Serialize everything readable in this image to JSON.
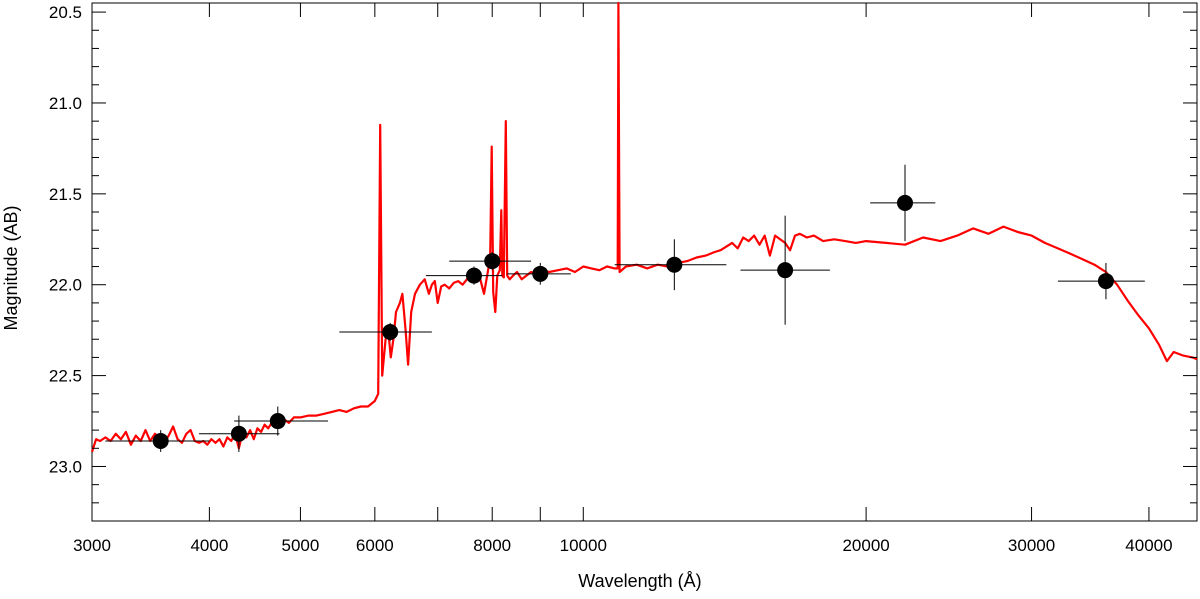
{
  "chart_data": {
    "type": "scatter",
    "title": "",
    "xlabel": "Wavelength (Å)",
    "ylabel": "Magnitude (AB)",
    "x_scale": "log",
    "y_inverted": true,
    "xlim": [
      3000,
      45000
    ],
    "ylim": [
      23.3,
      20.45
    ],
    "x_ticks_major": [
      3000,
      4000,
      5000,
      6000,
      8000,
      10000,
      20000,
      30000,
      40000
    ],
    "x_ticks_minor": [
      7000,
      9000,
      40000
    ],
    "y_ticks_major": [
      20.5,
      21.0,
      21.5,
      22.0,
      22.5,
      23.0
    ],
    "y_tick_labels": [
      "20.5",
      "21.0",
      "21.5",
      "22.0",
      "22.5",
      "23.0"
    ],
    "x_tick_labels": [
      "3000",
      "4000",
      "5000",
      "6000",
      "8000",
      "10000",
      "20000",
      "30000",
      "40000"
    ],
    "grid": false,
    "colors": {
      "model": "#ff0000",
      "points": "#000000",
      "errorbars": "#000000"
    },
    "photometry": [
      {
        "x": 3550,
        "y": 22.86,
        "xerr": [
          3100,
          4000
        ],
        "yerr": 0.06
      },
      {
        "x": 4300,
        "y": 22.82,
        "xerr": [
          3900,
          4750
        ],
        "yerr": 0.1
      },
      {
        "x": 4730,
        "y": 22.75,
        "xerr": [
          4250,
          5350
        ],
        "yerr": 0.08
      },
      {
        "x": 6230,
        "y": 22.26,
        "xerr": [
          5500,
          6900
        ],
        "yerr": 0.05
      },
      {
        "x": 7650,
        "y": 21.95,
        "xerr": [
          6800,
          8200
        ],
        "yerr": 0.05
      },
      {
        "x": 8000,
        "y": 21.87,
        "xerr": [
          7200,
          8800
        ],
        "yerr": 0.05
      },
      {
        "x": 9000,
        "y": 21.94,
        "xerr": [
          8300,
          9700
        ],
        "yerr": 0.06
      },
      {
        "x": 12500,
        "y": 21.89,
        "xerr": [
          10800,
          14200
        ],
        "yerr": 0.14
      },
      {
        "x": 16400,
        "y": 21.92,
        "xerr": [
          14700,
          18300
        ],
        "yerr": 0.3
      },
      {
        "x": 22000,
        "y": 21.55,
        "xerr": [
          20200,
          23700
        ],
        "yerr": 0.21
      },
      {
        "x": 36000,
        "y": 21.98,
        "xerr": [
          32000,
          39600
        ],
        "yerr": 0.1
      }
    ],
    "model_spectrum": [
      [
        3000,
        22.92
      ],
      [
        3030,
        22.85
      ],
      [
        3060,
        22.86
      ],
      [
        3100,
        22.84
      ],
      [
        3140,
        22.86
      ],
      [
        3180,
        22.82
      ],
      [
        3220,
        22.85
      ],
      [
        3260,
        22.81
      ],
      [
        3300,
        22.88
      ],
      [
        3340,
        22.83
      ],
      [
        3380,
        22.86
      ],
      [
        3420,
        22.8
      ],
      [
        3460,
        22.86
      ],
      [
        3500,
        22.82
      ],
      [
        3540,
        22.84
      ],
      [
        3580,
        22.87
      ],
      [
        3620,
        22.83
      ],
      [
        3660,
        22.78
      ],
      [
        3700,
        22.85
      ],
      [
        3740,
        22.87
      ],
      [
        3780,
        22.82
      ],
      [
        3820,
        22.8
      ],
      [
        3860,
        22.86
      ],
      [
        3900,
        22.87
      ],
      [
        3940,
        22.86
      ],
      [
        3980,
        22.88
      ],
      [
        4020,
        22.85
      ],
      [
        4060,
        22.87
      ],
      [
        4100,
        22.85
      ],
      [
        4140,
        22.89
      ],
      [
        4180,
        22.84
      ],
      [
        4220,
        22.86
      ],
      [
        4260,
        22.82
      ],
      [
        4300,
        22.9
      ],
      [
        4340,
        22.81
      ],
      [
        4380,
        22.84
      ],
      [
        4420,
        22.8
      ],
      [
        4460,
        22.85
      ],
      [
        4500,
        22.79
      ],
      [
        4540,
        22.81
      ],
      [
        4580,
        22.77
      ],
      [
        4620,
        22.79
      ],
      [
        4660,
        22.76
      ],
      [
        4700,
        22.78
      ],
      [
        4750,
        22.75
      ],
      [
        4800,
        22.74
      ],
      [
        4860,
        22.76
      ],
      [
        4920,
        22.73
      ],
      [
        5000,
        22.73
      ],
      [
        5100,
        22.72
      ],
      [
        5200,
        22.72
      ],
      [
        5300,
        22.71
      ],
      [
        5400,
        22.7
      ],
      [
        5500,
        22.69
      ],
      [
        5600,
        22.7
      ],
      [
        5700,
        22.68
      ],
      [
        5800,
        22.67
      ],
      [
        5900,
        22.67
      ],
      [
        6000,
        22.64
      ],
      [
        6050,
        22.6
      ],
      [
        6080,
        21.12
      ],
      [
        6110,
        22.5
      ],
      [
        6160,
        22.3
      ],
      [
        6200,
        22.25
      ],
      [
        6240,
        22.4
      ],
      [
        6280,
        22.3
      ],
      [
        6320,
        22.15
      ],
      [
        6380,
        22.1
      ],
      [
        6420,
        22.05
      ],
      [
        6470,
        22.25
      ],
      [
        6510,
        22.44
      ],
      [
        6560,
        22.15
      ],
      [
        6620,
        22.05
      ],
      [
        6700,
        22.0
      ],
      [
        6780,
        21.97
      ],
      [
        6850,
        22.05
      ],
      [
        6900,
        22.0
      ],
      [
        6950,
        21.98
      ],
      [
        7000,
        22.1
      ],
      [
        7060,
        22.01
      ],
      [
        7120,
        22.0
      ],
      [
        7200,
        22.02
      ],
      [
        7280,
        21.99
      ],
      [
        7360,
        21.98
      ],
      [
        7440,
        22.0
      ],
      [
        7520,
        21.97
      ],
      [
        7600,
        21.96
      ],
      [
        7680,
        21.98
      ],
      [
        7760,
        21.96
      ],
      [
        7840,
        22.05
      ],
      [
        7920,
        21.92
      ],
      [
        7960,
        21.85
      ],
      [
        7990,
        21.24
      ],
      [
        8020,
        22.04
      ],
      [
        8060,
        22.15
      ],
      [
        8100,
        21.95
      ],
      [
        8150,
        21.92
      ],
      [
        8180,
        21.59
      ],
      [
        8200,
        21.95
      ],
      [
        8230,
        21.96
      ],
      [
        8270,
        21.1
      ],
      [
        8300,
        21.95
      ],
      [
        8350,
        21.97
      ],
      [
        8420,
        21.95
      ],
      [
        8500,
        21.93
      ],
      [
        8600,
        21.97
      ],
      [
        8700,
        21.95
      ],
      [
        8800,
        21.93
      ],
      [
        8900,
        21.94
      ],
      [
        9000,
        21.92
      ],
      [
        9200,
        21.93
      ],
      [
        9400,
        21.92
      ],
      [
        9600,
        21.91
      ],
      [
        9800,
        21.93
      ],
      [
        10000,
        21.9
      ],
      [
        10200,
        21.91
      ],
      [
        10400,
        21.92
      ],
      [
        10600,
        21.9
      ],
      [
        10800,
        21.91
      ],
      [
        10880,
        21.91
      ],
      [
        10900,
        20.45
      ],
      [
        10930,
        21.93
      ],
      [
        11100,
        21.9
      ],
      [
        11400,
        21.89
      ],
      [
        11700,
        21.91
      ],
      [
        12000,
        21.89
      ],
      [
        12300,
        21.9
      ],
      [
        12600,
        21.88
      ],
      [
        12900,
        21.87
      ],
      [
        13200,
        21.85
      ],
      [
        13500,
        21.84
      ],
      [
        13800,
        21.82
      ],
      [
        14000,
        21.81
      ],
      [
        14200,
        21.79
      ],
      [
        14400,
        21.77
      ],
      [
        14600,
        21.8
      ],
      [
        14800,
        21.74
      ],
      [
        15000,
        21.76
      ],
      [
        15200,
        21.73
      ],
      [
        15400,
        21.78
      ],
      [
        15600,
        21.73
      ],
      [
        15800,
        21.84
      ],
      [
        16000,
        21.73
      ],
      [
        16200,
        21.75
      ],
      [
        16400,
        21.77
      ],
      [
        16600,
        21.81
      ],
      [
        16800,
        21.73
      ],
      [
        17000,
        21.72
      ],
      [
        17300,
        21.74
      ],
      [
        17600,
        21.73
      ],
      [
        18000,
        21.76
      ],
      [
        18500,
        21.75
      ],
      [
        19000,
        21.76
      ],
      [
        19500,
        21.77
      ],
      [
        20000,
        21.76
      ],
      [
        21000,
        21.77
      ],
      [
        22000,
        21.78
      ],
      [
        23000,
        21.74
      ],
      [
        24000,
        21.76
      ],
      [
        25000,
        21.73
      ],
      [
        26000,
        21.69
      ],
      [
        27000,
        21.72
      ],
      [
        28000,
        21.68
      ],
      [
        29000,
        21.71
      ],
      [
        30000,
        21.73
      ],
      [
        31000,
        21.77
      ],
      [
        32000,
        21.8
      ],
      [
        33000,
        21.83
      ],
      [
        34000,
        21.86
      ],
      [
        35000,
        21.89
      ],
      [
        36000,
        21.93
      ],
      [
        37000,
        22.0
      ],
      [
        38000,
        22.09
      ],
      [
        39000,
        22.17
      ],
      [
        40000,
        22.24
      ],
      [
        41000,
        22.33
      ],
      [
        41800,
        22.42
      ],
      [
        42500,
        22.37
      ],
      [
        43500,
        22.39
      ],
      [
        44500,
        22.4
      ],
      [
        45000,
        22.41
      ]
    ]
  }
}
